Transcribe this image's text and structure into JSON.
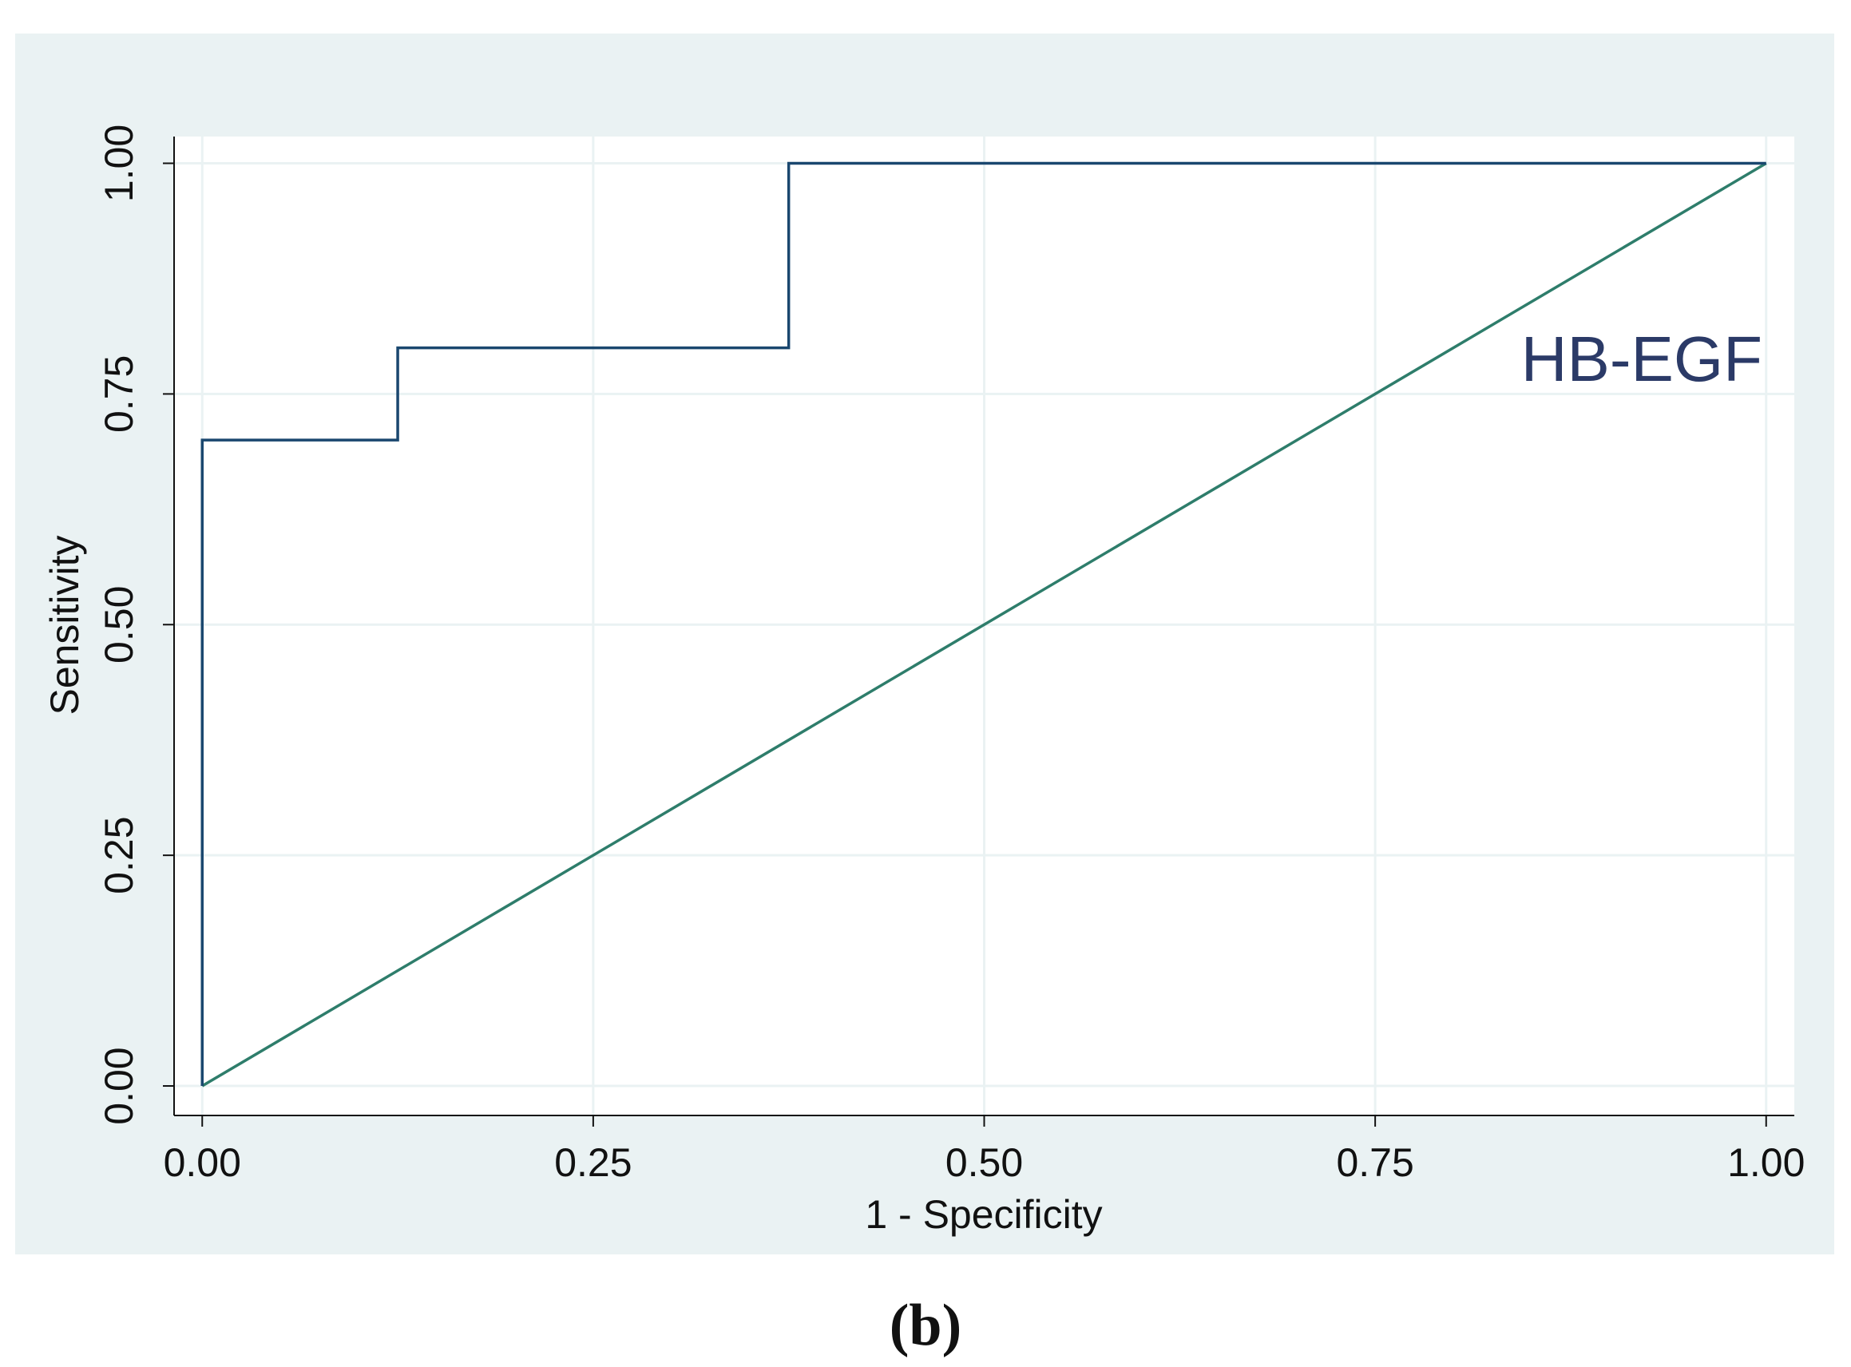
{
  "chart_data": {
    "type": "line",
    "annotation": "HB-EGF",
    "caption": "(b)",
    "x_label": "1 - Specificity",
    "y_label": "Sensitivity",
    "series": [
      {
        "color": "#1a476f",
        "x": [
          0,
          0,
          0.125,
          0.125,
          0.375,
          0.375,
          1
        ],
        "values": [
          0,
          0.7,
          0.7,
          0.8,
          0.8,
          1,
          1
        ]
      },
      {
        "color": "#2e7d6b",
        "x": [
          0,
          1
        ],
        "values": [
          0,
          1
        ]
      }
    ],
    "xlim": [
      -0.018,
      1.018
    ],
    "ylim": [
      -0.032,
      1.029
    ],
    "xticks": [
      {
        "value": 0,
        "label": "0.00"
      },
      {
        "value": 0.25,
        "label": "0.25"
      },
      {
        "value": 0.5,
        "label": "0.50"
      },
      {
        "value": 0.75,
        "label": "0.75"
      },
      {
        "value": 1,
        "label": "1.00"
      }
    ],
    "yticks": [
      {
        "value": 0,
        "label": "0.00"
      },
      {
        "value": 0.25,
        "label": "0.25"
      },
      {
        "value": 0.5,
        "label": "0.50"
      },
      {
        "value": 0.75,
        "label": "0.75"
      },
      {
        "value": 1,
        "label": "1.00"
      }
    ],
    "grid": true
  }
}
